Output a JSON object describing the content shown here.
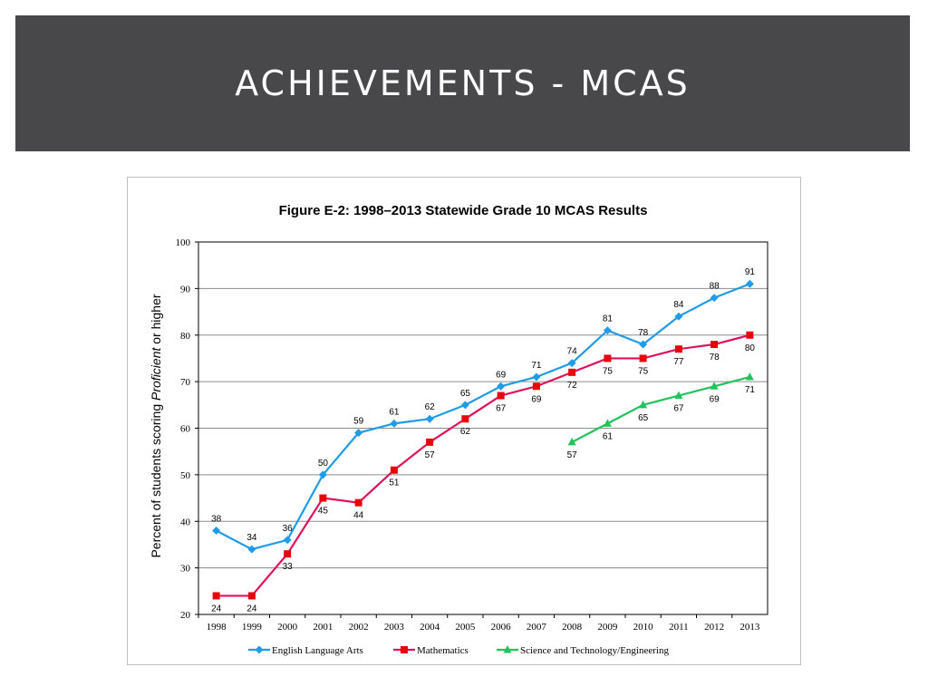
{
  "slide": {
    "title": "ACHIEVEMENTS - MCAS"
  },
  "chart_data": {
    "type": "line",
    "title": "Figure E-2: 1998–2013 Statewide Grade 10 MCAS Results",
    "ylabel_parts": [
      "Percent of students scoring ",
      "Proficient",
      " or higher"
    ],
    "xlabel": "",
    "ylim": [
      20,
      100
    ],
    "yticks": [
      20,
      30,
      40,
      50,
      60,
      70,
      80,
      90,
      100
    ],
    "grid": true,
    "legend_position": "bottom",
    "x": [
      "1998",
      "1999",
      "2000",
      "2001",
      "2002",
      "2003",
      "2004",
      "2005",
      "2006",
      "2007",
      "2008",
      "2009",
      "2010",
      "2011",
      "2012",
      "2013"
    ],
    "series": [
      {
        "name": "English Language Arts",
        "color": "#1f9be8",
        "marker": "diamond",
        "label_pos": "above",
        "values": [
          38,
          34,
          36,
          50,
          59,
          61,
          62,
          65,
          69,
          71,
          74,
          81,
          78,
          84,
          88,
          91
        ]
      },
      {
        "name": "Mathematics",
        "color": "#e0105a",
        "marker_color": "#e8000b",
        "marker": "square",
        "label_pos": "below",
        "values": [
          24,
          24,
          33,
          45,
          44,
          51,
          57,
          62,
          67,
          69,
          72,
          75,
          75,
          77,
          78,
          80
        ]
      },
      {
        "name": "Science and Technology/Engineering",
        "color": "#22c35d",
        "marker": "triangle",
        "label_pos": "below",
        "values": [
          null,
          null,
          null,
          null,
          null,
          null,
          null,
          null,
          null,
          null,
          57,
          61,
          65,
          67,
          69,
          71
        ]
      }
    ]
  }
}
